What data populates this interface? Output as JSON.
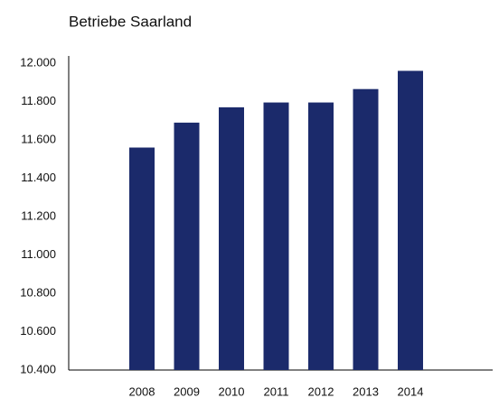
{
  "chart_data": {
    "type": "bar",
    "title": "Betriebe Saarland",
    "categories": [
      "2008",
      "2009",
      "2010",
      "2011",
      "2012",
      "2013",
      "2014"
    ],
    "values": [
      11560,
      11690,
      11770,
      11795,
      11795,
      11865,
      11960
    ],
    "color": "#1b2a6b",
    "ylim": [
      10400,
      12000
    ],
    "yticks": [
      {
        "value": 10400,
        "label": "10.400"
      },
      {
        "value": 10600,
        "label": "10.600"
      },
      {
        "value": 10800,
        "label": "10.800"
      },
      {
        "value": 11000,
        "label": "11.000"
      },
      {
        "value": 11200,
        "label": "11.200"
      },
      {
        "value": 11400,
        "label": "11.400"
      },
      {
        "value": 11600,
        "label": "11.600"
      },
      {
        "value": 11800,
        "label": "11.800"
      },
      {
        "value": 12000,
        "label": "12.000"
      }
    ],
    "grid": false
  }
}
